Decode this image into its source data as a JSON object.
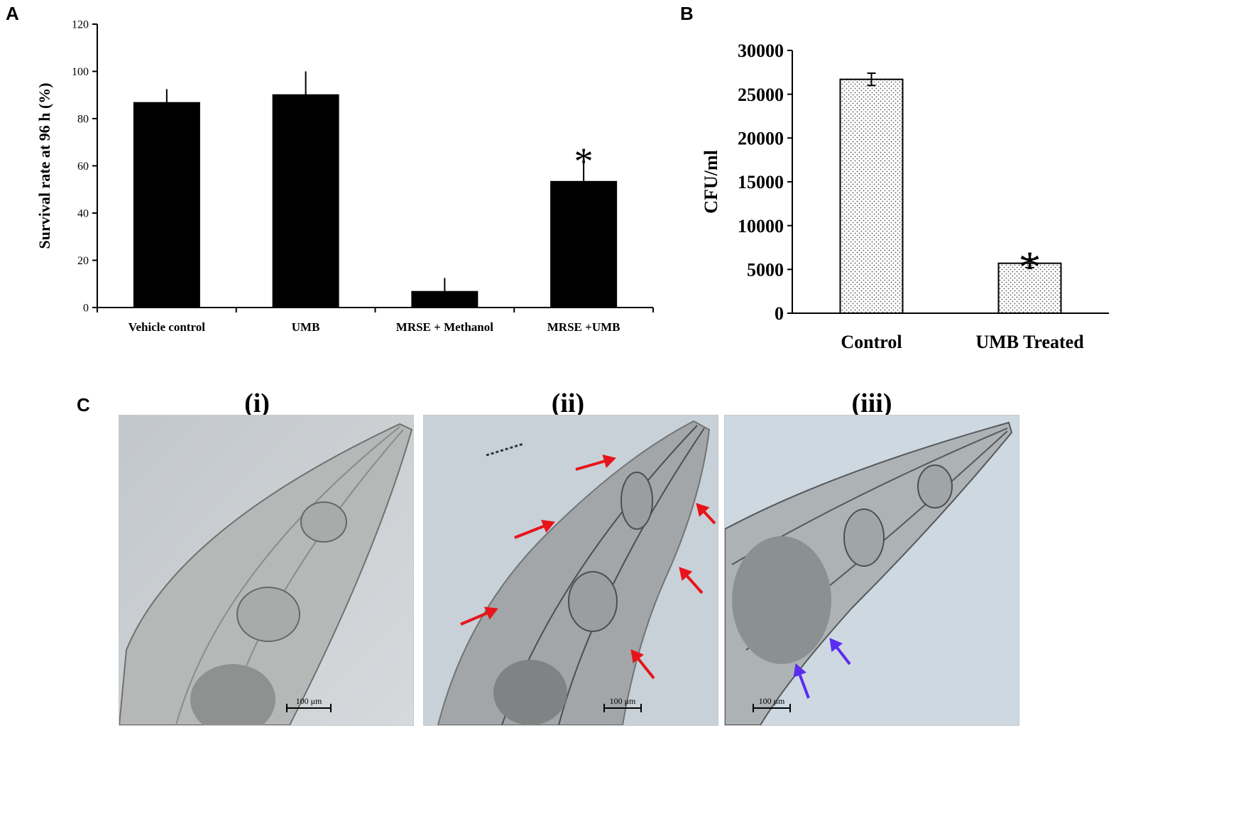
{
  "panels": {
    "a": "A",
    "b": "B",
    "c": "C"
  },
  "chart_data": [
    {
      "type": "bar",
      "panel": "A",
      "categories": [
        "Vehicle control",
        "UMB",
        "MRSE + Methanol",
        "MRSE +UMB"
      ],
      "values": [
        86.7,
        90,
        6.7,
        53.3
      ],
      "errors": [
        5.8,
        10,
        5.8,
        11.5
      ],
      "significance": [
        "",
        "",
        "",
        "*"
      ],
      "ylabel": "Survival rate at 96 h (%)",
      "xlabel": "",
      "ylim": [
        0,
        120
      ],
      "yticks": [
        0,
        20,
        40,
        60,
        80,
        100,
        120
      ],
      "bar_color": "#000000",
      "grid": false
    },
    {
      "type": "bar",
      "panel": "B",
      "categories": [
        "Control",
        "UMB Treated"
      ],
      "values": [
        26700,
        5700
      ],
      "errors": [
        700,
        500
      ],
      "significance": [
        "",
        "*"
      ],
      "ylabel": "CFU/ml",
      "xlabel": "",
      "ylim": [
        0,
        30000
      ],
      "yticks": [
        0,
        5000,
        10000,
        15000,
        20000,
        25000,
        30000
      ],
      "bar_fill": "dotted",
      "grid": false
    }
  ],
  "micrographs": [
    {
      "label": "(i)",
      "scale": "100 μm"
    },
    {
      "label": "(ii)",
      "scale": "100 μm"
    },
    {
      "label": "(iii)",
      "scale": "100 μm"
    }
  ],
  "colors": {
    "red_arrow": "#e8141b",
    "blue_arrow": "#5b2cf0",
    "background": "#c5cfd6"
  }
}
